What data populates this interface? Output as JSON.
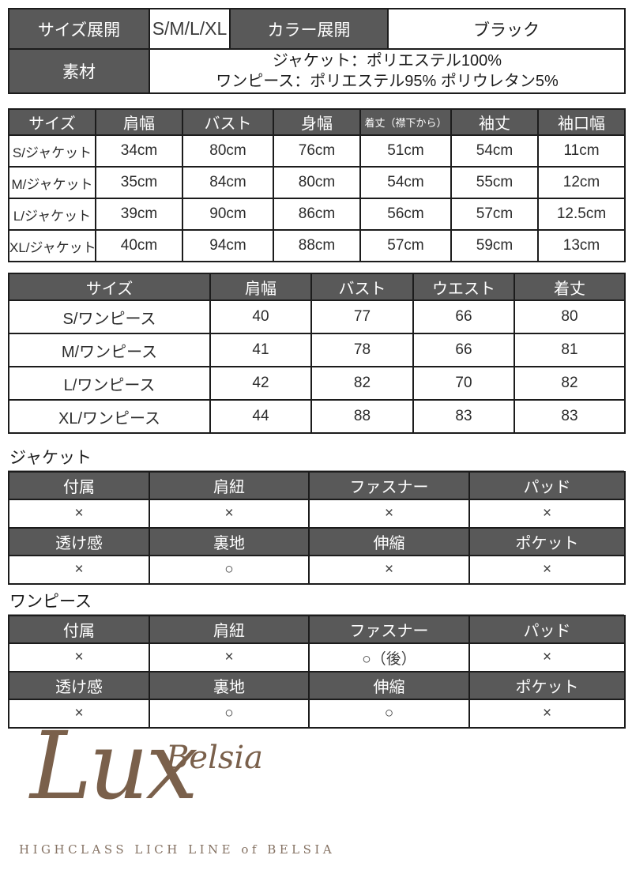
{
  "colors": {
    "header_bg": "#595959",
    "header_text": "#ffffff",
    "border": "#1c1c1c",
    "logo_brown": "#7a604b"
  },
  "spec_top": {
    "size_label": "サイズ展開",
    "size_value": "S/M/L/XL",
    "color_label": "カラー展開",
    "color_value": "ブラック",
    "material_label": "素材",
    "material_line1": "ジャケット：ポリエステル100%",
    "material_line2": "ワンピース：ポリエステル95% ポリウレタン5%"
  },
  "jacket_size_table": {
    "headers": [
      "サイズ",
      "肩幅",
      "バスト",
      "身幅",
      "着丈（襟下から）",
      "袖丈",
      "袖口幅"
    ],
    "rows": [
      [
        "S/ジャケット",
        "34cm",
        "80cm",
        "76cm",
        "51cm",
        "54cm",
        "11cm"
      ],
      [
        "M/ジャケット",
        "35cm",
        "84cm",
        "80cm",
        "54cm",
        "55cm",
        "12cm"
      ],
      [
        "L/ジャケット",
        "39cm",
        "90cm",
        "86cm",
        "56cm",
        "57cm",
        "12.5cm"
      ],
      [
        "XL/ジャケット",
        "40cm",
        "94cm",
        "88cm",
        "57cm",
        "59cm",
        "13cm"
      ]
    ]
  },
  "onepiece_size_table": {
    "headers": [
      "サイズ",
      "肩幅",
      "バスト",
      "ウエスト",
      "着丈"
    ],
    "rows": [
      [
        "S/ワンピース",
        "40",
        "77",
        "66",
        "80"
      ],
      [
        "M/ワンピース",
        "41",
        "78",
        "66",
        "81"
      ],
      [
        "L/ワンピース",
        "42",
        "82",
        "70",
        "82"
      ],
      [
        "XL/ワンピース",
        "44",
        "88",
        "83",
        "83"
      ]
    ]
  },
  "jacket_features": {
    "title": "ジャケット",
    "rows": [
      {
        "headers": [
          "付属",
          "肩紐",
          "ファスナー",
          "パッド"
        ],
        "values": [
          "×",
          "×",
          "×",
          "×"
        ]
      },
      {
        "headers": [
          "透け感",
          "裏地",
          "伸縮",
          "ポケット"
        ],
        "values": [
          "×",
          "○",
          "×",
          "×"
        ]
      }
    ]
  },
  "onepiece_features": {
    "title": "ワンピース",
    "rows": [
      {
        "headers": [
          "付属",
          "肩紐",
          "ファスナー",
          "パッド"
        ],
        "values": [
          "×",
          "×",
          "○（後）",
          "×"
        ]
      },
      {
        "headers": [
          "透け感",
          "裏地",
          "伸縮",
          "ポケット"
        ],
        "values": [
          "×",
          "○",
          "○",
          "×"
        ]
      }
    ]
  },
  "logo": {
    "brand_script": "Belsia",
    "brand_main": "Lux",
    "tagline": "HIGHCLASS LICH LINE of BELSIA"
  }
}
